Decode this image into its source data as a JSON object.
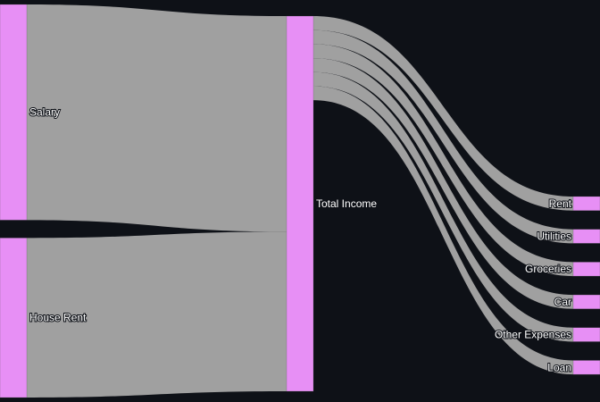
{
  "chart_data": {
    "type": "sankey",
    "colors": {
      "background": "#0e1117",
      "node": "#e78ff5",
      "link": "#a0a0a0",
      "label": "#ffffff"
    },
    "nodes": [
      {
        "id": "salary",
        "label": "Salary"
      },
      {
        "id": "house_rent",
        "label": "House Rent"
      },
      {
        "id": "total_income",
        "label": "Total Income"
      },
      {
        "id": "rent",
        "label": "Rent"
      },
      {
        "id": "utilities",
        "label": "Utilities"
      },
      {
        "id": "groceries",
        "label": "Groceries"
      },
      {
        "id": "car",
        "label": "Car"
      },
      {
        "id": "other_expenses",
        "label": "Other Expenses"
      },
      {
        "id": "loan",
        "label": "Loan"
      }
    ],
    "links": [
      {
        "source": "salary",
        "target": "total_income",
        "value": 1000
      },
      {
        "source": "house_rent",
        "target": "total_income",
        "value": 740
      },
      {
        "source": "total_income",
        "target": "rent",
        "value": 65
      },
      {
        "source": "total_income",
        "target": "utilities",
        "value": 65
      },
      {
        "source": "total_income",
        "target": "groceries",
        "value": 65
      },
      {
        "source": "total_income",
        "target": "car",
        "value": 65
      },
      {
        "source": "total_income",
        "target": "other_expenses",
        "value": 65
      },
      {
        "source": "total_income",
        "target": "loan",
        "value": 65
      }
    ]
  }
}
